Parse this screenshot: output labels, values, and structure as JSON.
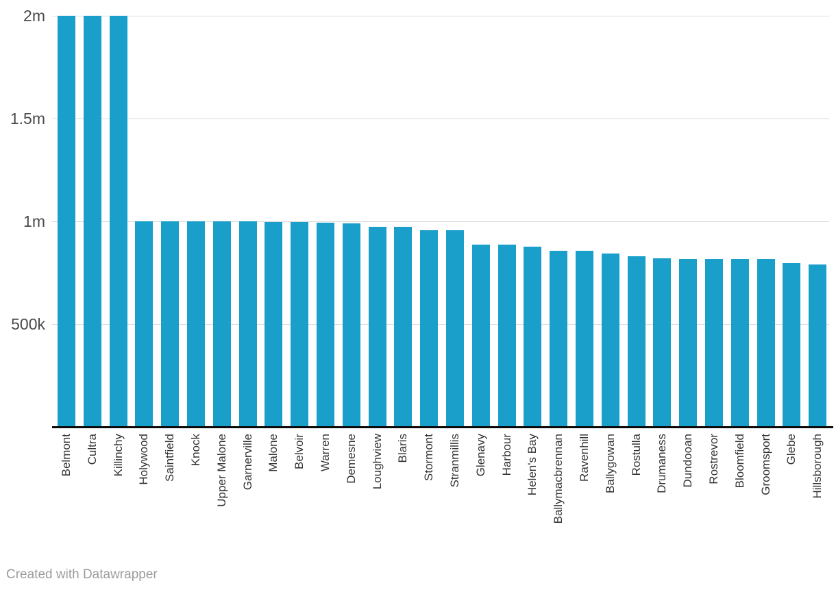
{
  "chart_data": {
    "type": "bar",
    "title": "",
    "xlabel": "",
    "ylabel": "",
    "categories": [
      "Belmont",
      "Cultra",
      "Killinchy",
      "Holywood",
      "Saintfield",
      "Knock",
      "Upper Malone",
      "Garnerville",
      "Malone",
      "Belvoir",
      "Warren",
      "Demesne",
      "Loughview",
      "Blaris",
      "Stormont",
      "Stranmillis",
      "Glenavy",
      "Harbour",
      "Helen's Bay",
      "Ballymacbrennan",
      "Ravenhill",
      "Ballygowan",
      "Rostulla",
      "Drumaness",
      "Dundooan",
      "Rostrevor",
      "Bloomfield",
      "Groomsport",
      "Glebe",
      "Hillsborough"
    ],
    "values": [
      2000000,
      2000000,
      2000000,
      1000000,
      1000000,
      1000000,
      999000,
      999000,
      998000,
      997000,
      993000,
      991000,
      973000,
      972000,
      957000,
      956000,
      888000,
      887000,
      877000,
      858000,
      857000,
      845000,
      831000,
      819000,
      818000,
      817000,
      816000,
      816000,
      797000,
      789000
    ],
    "ylim": [
      0,
      2000000
    ],
    "ytick_labels": [
      "2m",
      "1.5m",
      "1m",
      "500k"
    ],
    "ytick_values": [
      2000000,
      1500000,
      1000000,
      500000
    ],
    "grid": true,
    "legend_position": "none",
    "bar_color": "#1a9fcb",
    "x_labels_rotated_degrees": 90
  },
  "colors": {
    "bar": "#1a9fcb",
    "gridline": "#dadada",
    "axis_line": "#0a0a0a",
    "ytick_text": "#4b4b4b",
    "xtick_text": "#333333",
    "footer_text": "#9c9c9c",
    "background": "#ffffff"
  },
  "footer": {
    "credit": "Created with Datawrapper"
  }
}
